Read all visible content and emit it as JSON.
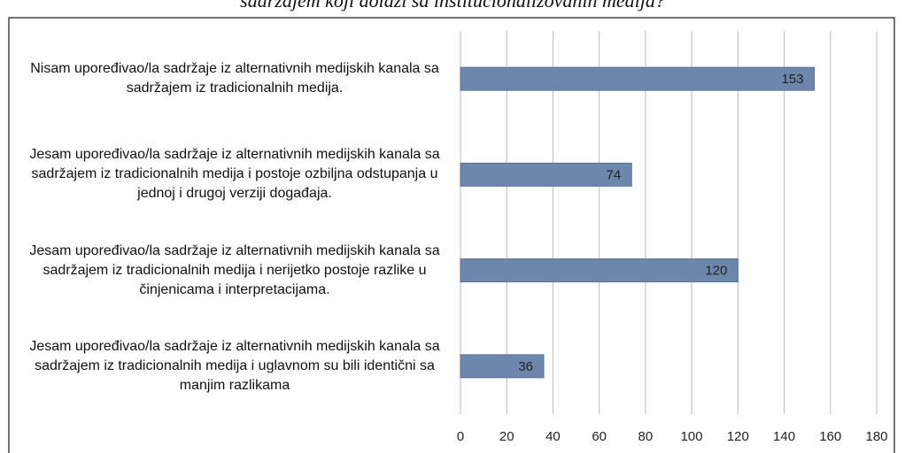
{
  "chart_data": {
    "type": "barh",
    "title": "sadržajem koji dolazi sa institucionalizovanih medija?",
    "categories": [
      "Nisam upoređivao/la sadržaje iz alternativnih medijskih kanala sa sadržajem iz tradicionalnih medija.",
      "Jesam upoređivao/la sadržaje iz alternativnih medijskih kanala sa sadržajem iz tradicionalnih medija i postoje ozbiljna odstupanja u jednoj i drugoj verziji događaja.",
      "Jesam upoređivao/la sadržaje iz alternativnih medijskih kanala sa sadržajem iz tradicionalnih medija i nerijetko postoje razlike u činjenicama i interpretacijama.",
      "Jesam upoređivao/la sadržaje iz alternativnih medijskih kanala sa sadržajem iz tradicionalnih medija i uglavnom su bili identični sa manjim razlikama"
    ],
    "values": [
      153,
      74,
      120,
      36
    ],
    "color": "#6d86ab",
    "xlim": [
      0,
      180
    ],
    "xticks": [
      0,
      20,
      40,
      60,
      80,
      100,
      120,
      140,
      160,
      180
    ],
    "grid": true
  }
}
